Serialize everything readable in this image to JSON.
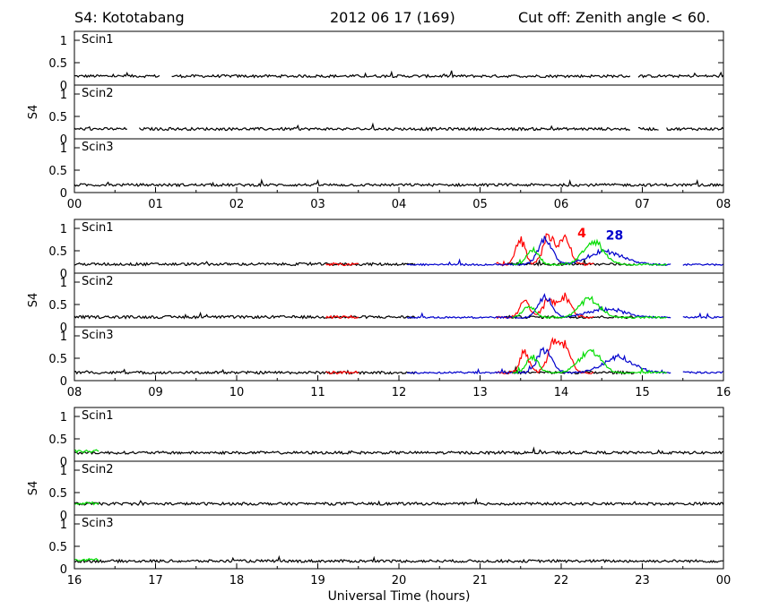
{
  "header": {
    "station": "S4: Kototabang",
    "date": "2012 06 17 (169)",
    "cutoff": "Cut off: Zenith angle < 60."
  },
  "chart_data": {
    "type": "line",
    "xlabel": "Universal Time (hours)",
    "ylabel": "S4",
    "ylim": [
      0,
      1.2
    ],
    "yticks": [
      "0",
      "0.5",
      "1"
    ],
    "colors": {
      "black": "#000000",
      "red": "#ff0000",
      "green": "#00dd00",
      "blue": "#0000cc"
    },
    "groups": [
      {
        "xlim": [
          0,
          8
        ],
        "xtick_labels": [
          "00",
          "01",
          "02",
          "03",
          "04",
          "05",
          "06",
          "07",
          "08"
        ],
        "annotations": [],
        "panels": [
          {
            "label": "Scin1",
            "series": [
              {
                "color": "black",
                "baseline": 0.2,
                "noise": 0.03,
                "segments": [
                  [
                    0,
                    1.05
                  ],
                  [
                    1.2,
                    6.85
                  ],
                  [
                    6.95,
                    8
                  ]
                ]
              }
            ]
          },
          {
            "label": "Scin2",
            "series": [
              {
                "color": "black",
                "baseline": 0.22,
                "noise": 0.03,
                "segments": [
                  [
                    0,
                    0.65
                  ],
                  [
                    0.8,
                    6.85
                  ],
                  [
                    6.95,
                    7.2
                  ],
                  [
                    7.3,
                    8
                  ]
                ]
              }
            ]
          },
          {
            "label": "Scin3",
            "series": [
              {
                "color": "black",
                "baseline": 0.17,
                "noise": 0.03,
                "segments": [
                  [
                    0,
                    8
                  ]
                ]
              }
            ]
          }
        ]
      },
      {
        "xlim": [
          8,
          16
        ],
        "xtick_labels": [
          "08",
          "09",
          "10",
          "11",
          "12",
          "13",
          "14",
          "15",
          "16"
        ],
        "annotations": [
          {
            "text": "4",
            "color": "red",
            "x": 14.2,
            "y": 0.9
          },
          {
            "text": "28",
            "color": "blue",
            "x": 14.55,
            "y": 0.85
          }
        ],
        "panels": [
          {
            "label": "Scin1",
            "series": [
              {
                "color": "black",
                "baseline": 0.2,
                "noise": 0.03,
                "segments": [
                  [
                    8,
                    12.2
                  ],
                  [
                    13.3,
                    14.9
                  ]
                ]
              },
              {
                "color": "red",
                "baseline": 0.2,
                "noise": 0.03,
                "segments": [
                  [
                    11.1,
                    11.5
                  ],
                  [
                    13.2,
                    14.4
                  ]
                ],
                "bumps": [
                  [
                    13.5,
                    0.55,
                    0.08
                  ],
                  [
                    13.85,
                    0.6,
                    0.1
                  ],
                  [
                    14.05,
                    0.55,
                    0.1
                  ]
                ]
              },
              {
                "color": "blue",
                "baseline": 0.19,
                "noise": 0.02,
                "segments": [
                  [
                    12.1,
                    15.35
                  ],
                  [
                    15.5,
                    16
                  ]
                ],
                "bumps": [
                  [
                    13.8,
                    0.6,
                    0.12
                  ],
                  [
                    14.55,
                    0.3,
                    0.3
                  ]
                ]
              },
              {
                "color": "green",
                "baseline": 0.19,
                "noise": 0.02,
                "segments": [
                  [
                    13.4,
                    15.3
                  ]
                ],
                "bumps": [
                  [
                    13.65,
                    0.35,
                    0.1
                  ],
                  [
                    14.4,
                    0.5,
                    0.18
                  ]
                ]
              }
            ]
          },
          {
            "label": "Scin2",
            "series": [
              {
                "color": "black",
                "baseline": 0.22,
                "noise": 0.03,
                "segments": [
                  [
                    8,
                    12.2
                  ],
                  [
                    13.3,
                    14.9
                  ]
                ]
              },
              {
                "color": "red",
                "baseline": 0.22,
                "noise": 0.03,
                "segments": [
                  [
                    11.1,
                    11.5
                  ],
                  [
                    13.2,
                    14.4
                  ]
                ],
                "bumps": [
                  [
                    13.55,
                    0.4,
                    0.08
                  ],
                  [
                    13.85,
                    0.4,
                    0.1
                  ],
                  [
                    14.05,
                    0.45,
                    0.1
                  ]
                ]
              },
              {
                "color": "blue",
                "baseline": 0.21,
                "noise": 0.02,
                "segments": [
                  [
                    12.1,
                    15.35
                  ],
                  [
                    15.5,
                    16
                  ]
                ],
                "bumps": [
                  [
                    13.8,
                    0.45,
                    0.12
                  ],
                  [
                    14.55,
                    0.2,
                    0.3
                  ]
                ]
              },
              {
                "color": "green",
                "baseline": 0.21,
                "noise": 0.02,
                "segments": [
                  [
                    13.4,
                    15.3
                  ]
                ],
                "bumps": [
                  [
                    13.6,
                    0.25,
                    0.1
                  ],
                  [
                    14.35,
                    0.4,
                    0.18
                  ]
                ]
              }
            ]
          },
          {
            "label": "Scin3",
            "series": [
              {
                "color": "black",
                "baseline": 0.18,
                "noise": 0.03,
                "segments": [
                  [
                    8,
                    12.2
                  ],
                  [
                    13.3,
                    14.9
                  ]
                ]
              },
              {
                "color": "red",
                "baseline": 0.18,
                "noise": 0.03,
                "segments": [
                  [
                    11.1,
                    11.5
                  ],
                  [
                    13.2,
                    14.4
                  ]
                ],
                "bumps": [
                  [
                    13.55,
                    0.45,
                    0.08
                  ],
                  [
                    13.9,
                    0.6,
                    0.1
                  ],
                  [
                    14.05,
                    0.55,
                    0.1
                  ]
                ]
              },
              {
                "color": "blue",
                "baseline": 0.18,
                "noise": 0.02,
                "segments": [
                  [
                    12.1,
                    15.35
                  ],
                  [
                    15.5,
                    16
                  ]
                ],
                "bumps": [
                  [
                    13.8,
                    0.55,
                    0.12
                  ],
                  [
                    14.7,
                    0.35,
                    0.25
                  ]
                ]
              },
              {
                "color": "green",
                "baseline": 0.18,
                "noise": 0.02,
                "segments": [
                  [
                    13.4,
                    15.3
                  ]
                ],
                "bumps": [
                  [
                    13.65,
                    0.35,
                    0.1
                  ],
                  [
                    14.35,
                    0.5,
                    0.18
                  ]
                ]
              }
            ]
          }
        ]
      },
      {
        "xlim": [
          16,
          24
        ],
        "xtick_labels": [
          "16",
          "17",
          "18",
          "19",
          "20",
          "21",
          "22",
          "23",
          "00"
        ],
        "annotations": [],
        "panels": [
          {
            "label": "Scin1",
            "series": [
              {
                "color": "black",
                "baseline": 0.19,
                "noise": 0.03,
                "segments": [
                  [
                    16,
                    24
                  ]
                ]
              },
              {
                "color": "green",
                "baseline": 0.22,
                "noise": 0.03,
                "segments": [
                  [
                    16,
                    16.3
                  ]
                ]
              }
            ]
          },
          {
            "label": "Scin2",
            "series": [
              {
                "color": "black",
                "baseline": 0.25,
                "noise": 0.03,
                "segments": [
                  [
                    16,
                    24
                  ]
                ]
              },
              {
                "color": "green",
                "baseline": 0.26,
                "noise": 0.03,
                "segments": [
                  [
                    16,
                    16.3
                  ]
                ]
              }
            ]
          },
          {
            "label": "Scin3",
            "series": [
              {
                "color": "black",
                "baseline": 0.17,
                "noise": 0.03,
                "segments": [
                  [
                    16,
                    24
                  ]
                ]
              },
              {
                "color": "green",
                "baseline": 0.2,
                "noise": 0.03,
                "segments": [
                  [
                    16,
                    16.3
                  ]
                ]
              }
            ]
          }
        ]
      }
    ]
  }
}
